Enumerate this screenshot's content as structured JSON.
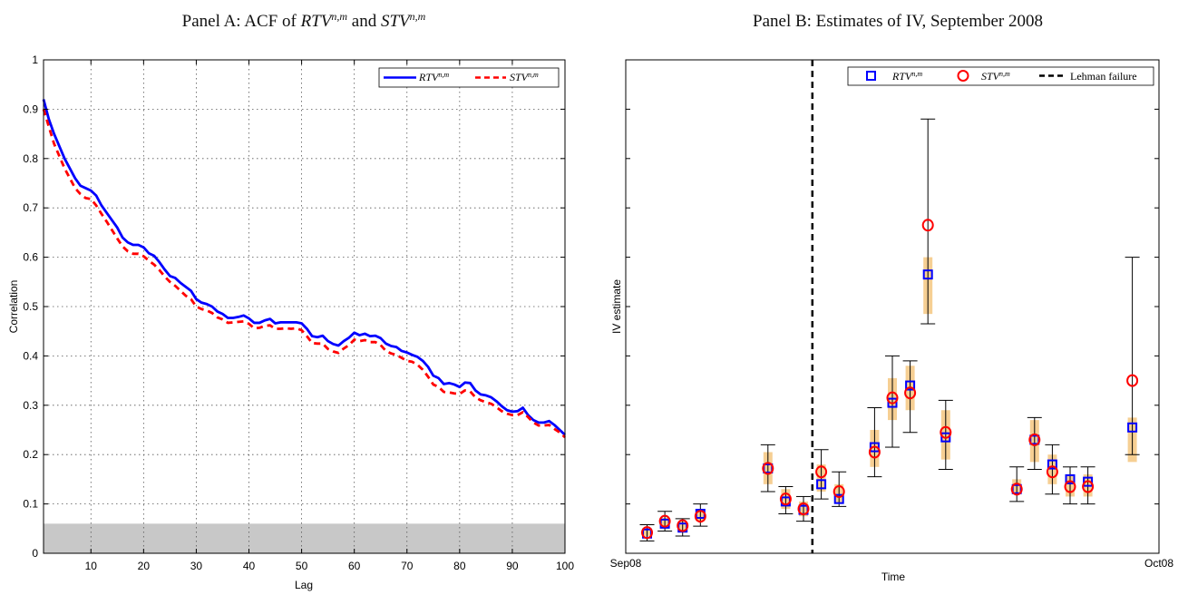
{
  "colors": {
    "rtv": "#0000ff",
    "stv": "#ff0000",
    "band_fill": "#c8c8c8",
    "panelA_bg": "#ffffff",
    "ci_fill": "#f6cf93",
    "event_line": "#000000"
  },
  "panelA": {
    "title_prefix": "Panel A: ACF of ",
    "title_conj": " and ",
    "series_name_base": "RTV",
    "series2_name_base": "STV",
    "superscript": "n,m",
    "xlabel": "Lag",
    "ylabel": "Correlation"
  },
  "panelB": {
    "title": "Panel B: Estimates of IV, September 2008",
    "xlabel": "Time",
    "ylabel": "IV estimate",
    "event_label": "Lehman failure"
  },
  "chart_data": [
    {
      "type": "line",
      "xlim": [
        1,
        100
      ],
      "ylim": [
        0,
        1
      ],
      "grid": true,
      "legend": "top-right",
      "xticks": [
        10,
        20,
        30,
        40,
        50,
        60,
        70,
        80,
        90,
        100
      ],
      "yticks": [
        0,
        0.1,
        0.2,
        0.3,
        0.4,
        0.5,
        0.6,
        0.7,
        0.8,
        0.9,
        1
      ],
      "shaded_band": [
        0,
        0.06
      ],
      "x": [
        1,
        2,
        3,
        4,
        5,
        6,
        7,
        8,
        9,
        10,
        11,
        12,
        13,
        14,
        15,
        16,
        17,
        18,
        19,
        20,
        21,
        22,
        23,
        24,
        25,
        26,
        27,
        28,
        29,
        30,
        31,
        32,
        33,
        34,
        35,
        36,
        37,
        38,
        39,
        40,
        41,
        42,
        43,
        44,
        45,
        46,
        47,
        48,
        49,
        50,
        51,
        52,
        53,
        54,
        55,
        56,
        57,
        58,
        59,
        60,
        61,
        62,
        63,
        64,
        65,
        66,
        67,
        68,
        69,
        70,
        71,
        72,
        73,
        74,
        75,
        76,
        77,
        78,
        79,
        80,
        81,
        82,
        83,
        84,
        85,
        86,
        87,
        88,
        89,
        90,
        91,
        92,
        93,
        94,
        95,
        96,
        97,
        98,
        99,
        100
      ],
      "series": [
        {
          "name": "RTV^{n,m}",
          "style": "solid",
          "values": [
            0.92,
            0.88,
            0.85,
            0.825,
            0.8,
            0.78,
            0.76,
            0.745,
            0.74,
            0.735,
            0.725,
            0.705,
            0.69,
            0.675,
            0.66,
            0.64,
            0.63,
            0.625,
            0.625,
            0.62,
            0.608,
            0.603,
            0.59,
            0.575,
            0.562,
            0.558,
            0.548,
            0.54,
            0.532,
            0.515,
            0.508,
            0.505,
            0.5,
            0.49,
            0.485,
            0.477,
            0.477,
            0.479,
            0.482,
            0.476,
            0.467,
            0.467,
            0.472,
            0.475,
            0.466,
            0.468,
            0.468,
            0.468,
            0.468,
            0.466,
            0.455,
            0.44,
            0.438,
            0.441,
            0.43,
            0.424,
            0.421,
            0.43,
            0.437,
            0.447,
            0.442,
            0.445,
            0.44,
            0.441,
            0.436,
            0.425,
            0.42,
            0.418,
            0.41,
            0.407,
            0.402,
            0.398,
            0.39,
            0.378,
            0.36,
            0.355,
            0.343,
            0.345,
            0.342,
            0.337,
            0.346,
            0.345,
            0.33,
            0.322,
            0.32,
            0.316,
            0.308,
            0.298,
            0.29,
            0.287,
            0.288,
            0.295,
            0.28,
            0.27,
            0.265,
            0.265,
            0.268,
            0.26,
            0.25,
            0.24
          ]
        },
        {
          "name": "STV^{n,m}",
          "style": "dashed",
          "values": [
            0.9,
            0.865,
            0.83,
            0.805,
            0.78,
            0.76,
            0.74,
            0.728,
            0.72,
            0.718,
            0.705,
            0.688,
            0.672,
            0.655,
            0.638,
            0.622,
            0.612,
            0.607,
            0.607,
            0.602,
            0.593,
            0.585,
            0.574,
            0.561,
            0.55,
            0.542,
            0.532,
            0.522,
            0.515,
            0.5,
            0.495,
            0.492,
            0.487,
            0.478,
            0.474,
            0.467,
            0.468,
            0.469,
            0.47,
            0.465,
            0.456,
            0.457,
            0.461,
            0.462,
            0.455,
            0.455,
            0.456,
            0.455,
            0.456,
            0.452,
            0.44,
            0.426,
            0.425,
            0.425,
            0.414,
            0.409,
            0.406,
            0.415,
            0.422,
            0.433,
            0.43,
            0.432,
            0.428,
            0.428,
            0.422,
            0.41,
            0.405,
            0.402,
            0.396,
            0.39,
            0.388,
            0.382,
            0.372,
            0.358,
            0.342,
            0.337,
            0.327,
            0.326,
            0.324,
            0.323,
            0.33,
            0.328,
            0.316,
            0.31,
            0.306,
            0.303,
            0.296,
            0.288,
            0.283,
            0.28,
            0.28,
            0.286,
            0.276,
            0.265,
            0.259,
            0.259,
            0.26,
            0.252,
            0.245,
            0.235
          ]
        }
      ]
    },
    {
      "type": "scatter",
      "xlim": [
        0,
        30
      ],
      "ylim": [
        0,
        100
      ],
      "xticklabels": [
        "Sep08",
        "Oct08"
      ],
      "legend": "top-right",
      "event_x": 10.5,
      "points": [
        {
          "x": 1.2,
          "rtv": 4.0,
          "stv": 4.2,
          "lo": 2.5,
          "hi": 5.8,
          "band": [
            3.5,
            5.0
          ]
        },
        {
          "x": 2.2,
          "rtv": 6.0,
          "stv": 6.5,
          "lo": 4.5,
          "hi": 8.5,
          "band": [
            5.2,
            7.2
          ]
        },
        {
          "x": 3.2,
          "rtv": 5.2,
          "stv": 5.6,
          "lo": 3.5,
          "hi": 7.0,
          "band": [
            4.5,
            6.5
          ]
        },
        {
          "x": 4.2,
          "rtv": 8.0,
          "stv": 7.5,
          "lo": 5.5,
          "hi": 10.0,
          "band": [
            6.5,
            9.0
          ]
        },
        {
          "x": 8.0,
          "rtv": 17.2,
          "stv": 17.2,
          "lo": 12.5,
          "hi": 22.0,
          "band": [
            14.0,
            20.5
          ]
        },
        {
          "x": 9.0,
          "rtv": 10.5,
          "stv": 11.0,
          "lo": 8.0,
          "hi": 13.5,
          "band": [
            9.0,
            13.0
          ]
        },
        {
          "x": 10.0,
          "rtv": 8.8,
          "stv": 9.0,
          "lo": 6.5,
          "hi": 11.5,
          "band": [
            7.5,
            10.5
          ]
        },
        {
          "x": 11.0,
          "rtv": 14.0,
          "stv": 16.5,
          "lo": 11.0,
          "hi": 21.0,
          "band": [
            12.5,
            18.0
          ]
        },
        {
          "x": 12.0,
          "rtv": 11.0,
          "stv": 12.5,
          "lo": 9.5,
          "hi": 16.5,
          "band": [
            10.0,
            14.0
          ]
        },
        {
          "x": 14.0,
          "rtv": 21.5,
          "stv": 20.5,
          "lo": 15.5,
          "hi": 29.5,
          "band": [
            17.5,
            25.0
          ]
        },
        {
          "x": 15.0,
          "rtv": 30.5,
          "stv": 31.5,
          "lo": 21.5,
          "hi": 40.0,
          "band": [
            27.0,
            35.5
          ]
        },
        {
          "x": 16.0,
          "rtv": 34.0,
          "stv": 32.5,
          "lo": 24.5,
          "hi": 39.0,
          "band": [
            29.0,
            38.0
          ]
        },
        {
          "x": 17.0,
          "rtv": 56.5,
          "stv": 66.5,
          "lo": 46.5,
          "hi": 88.0,
          "band": [
            48.5,
            60.0
          ]
        },
        {
          "x": 18.0,
          "rtv": 23.5,
          "stv": 24.5,
          "lo": 17.0,
          "hi": 31.0,
          "band": [
            19.0,
            29.0
          ]
        },
        {
          "x": 22.0,
          "rtv": 13.0,
          "stv": 13.0,
          "lo": 10.5,
          "hi": 17.5,
          "band": [
            12.0,
            15.0
          ]
        },
        {
          "x": 23.0,
          "rtv": 23.0,
          "stv": 23.0,
          "lo": 17.0,
          "hi": 27.5,
          "band": [
            18.5,
            27.0
          ]
        },
        {
          "x": 24.0,
          "rtv": 18.0,
          "stv": 16.5,
          "lo": 12.0,
          "hi": 22.0,
          "band": [
            14.0,
            20.0
          ]
        },
        {
          "x": 25.0,
          "rtv": 15.0,
          "stv": 13.5,
          "lo": 10.0,
          "hi": 17.5,
          "band": [
            11.5,
            16.0
          ]
        },
        {
          "x": 26.0,
          "rtv": 14.5,
          "stv": 13.5,
          "lo": 10.0,
          "hi": 17.5,
          "band": [
            11.5,
            16.0
          ]
        },
        {
          "x": 28.5,
          "rtv": 25.5,
          "stv": 35.0,
          "lo": 20.0,
          "hi": 60.0,
          "band": [
            18.5,
            27.5
          ]
        }
      ]
    }
  ]
}
